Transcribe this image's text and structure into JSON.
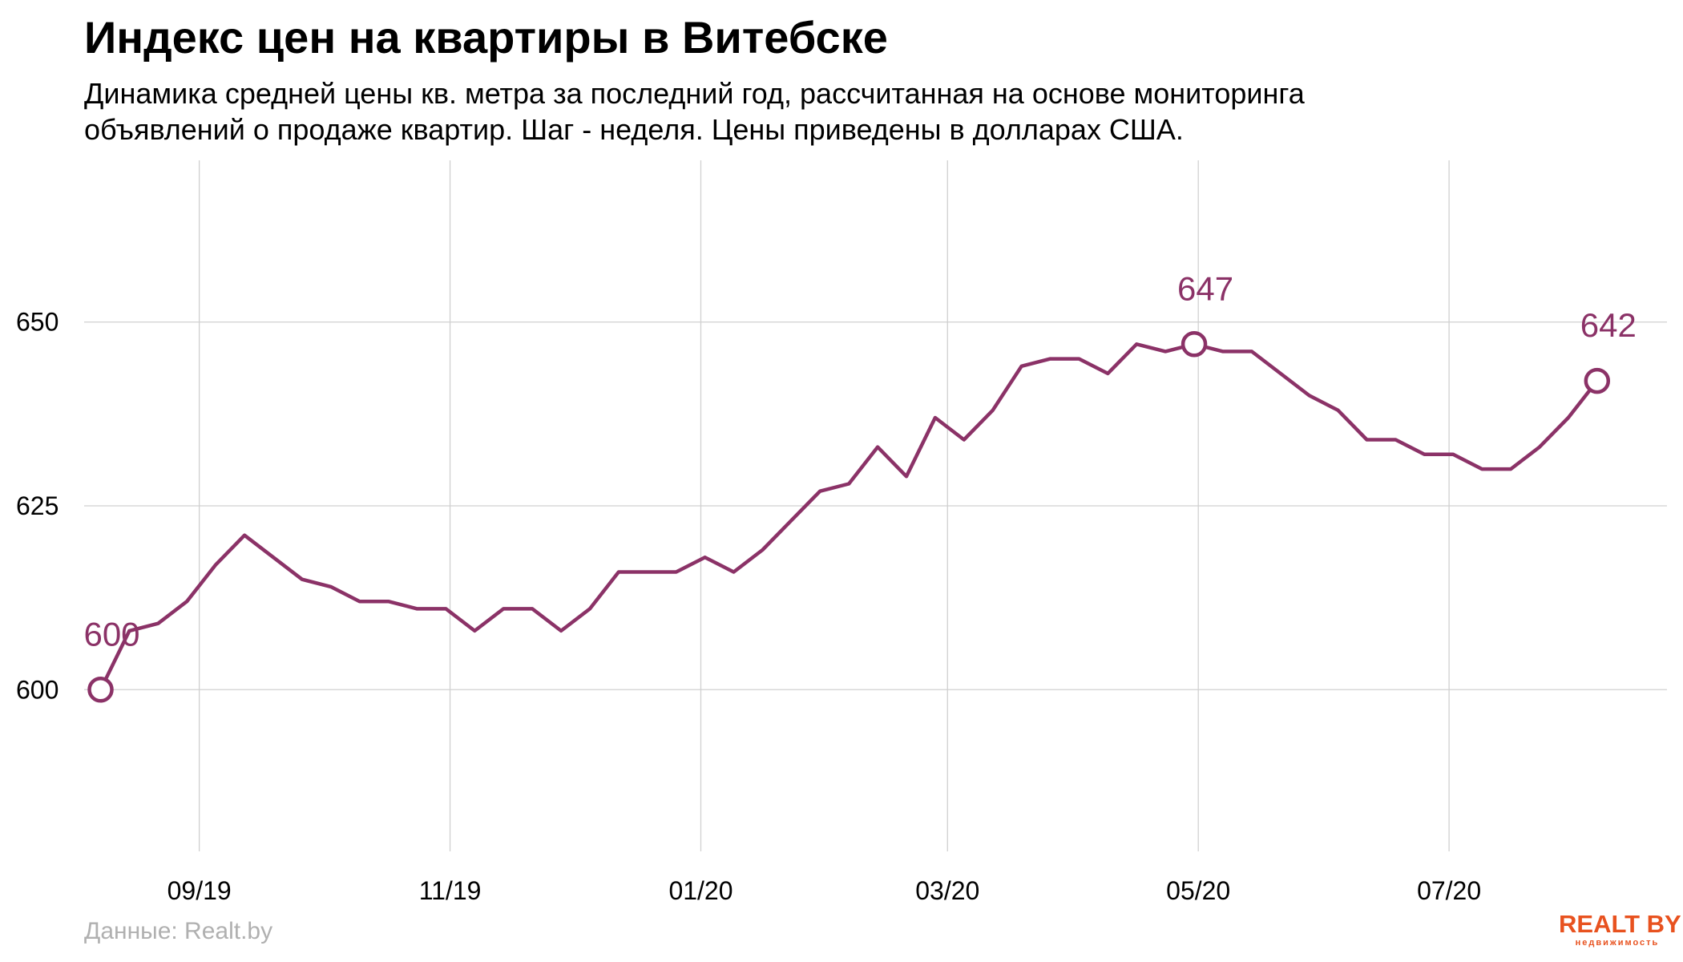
{
  "header": {
    "title": "Индекс цен на квартиры в Витебске",
    "subtitle_line1": "Динамика средней цены кв. метра за последний год, рассчитанная на основе мониторинга",
    "subtitle_line2": "объявлений о продаже квартир. Шаг - неделя. Цены приведены в долларах США."
  },
  "footer": {
    "source": "Данные: Realt.by",
    "logo_text": "REALT BY",
    "logo_subtext": "недвижимость"
  },
  "colors": {
    "line": "#8b3267",
    "grid": "#d0d0d0",
    "logo": "#e8521f"
  },
  "chart_data": {
    "type": "line",
    "title": "Индекс цен на квартиры в Витебске",
    "xlabel": "",
    "ylabel": "",
    "x_tick_labels": [
      "09/19",
      "11/19",
      "01/20",
      "03/20",
      "05/20",
      "07/20"
    ],
    "x_ticks": [
      "2019-09-01",
      "2019-11-01",
      "2020-01-01",
      "2020-03-01",
      "2020-05-01",
      "2020-07-01"
    ],
    "xlim": [
      "2019-08-04",
      "2020-08-23"
    ],
    "y_ticks": [
      600,
      625,
      650
    ],
    "ylim": [
      578,
      672
    ],
    "grid": true,
    "series": [
      {
        "x": [
          "2019-08-08",
          "2019-08-15",
          "2019-08-22",
          "2019-08-29",
          "2019-09-05",
          "2019-09-12",
          "2019-09-19",
          "2019-09-26",
          "2019-10-03",
          "2019-10-10",
          "2019-10-17",
          "2019-10-24",
          "2019-10-31",
          "2019-11-07",
          "2019-11-14",
          "2019-11-21",
          "2019-11-28",
          "2019-12-05",
          "2019-12-12",
          "2019-12-19",
          "2019-12-26",
          "2020-01-02",
          "2020-01-09",
          "2020-01-16",
          "2020-01-23",
          "2020-01-30",
          "2020-02-06",
          "2020-02-13",
          "2020-02-20",
          "2020-02-27",
          "2020-03-05",
          "2020-03-12",
          "2020-03-19",
          "2020-03-26",
          "2020-04-02",
          "2020-04-09",
          "2020-04-16",
          "2020-04-23",
          "2020-04-30",
          "2020-05-07",
          "2020-05-14",
          "2020-05-21",
          "2020-05-28",
          "2020-06-04",
          "2020-06-11",
          "2020-06-18",
          "2020-06-25",
          "2020-07-02",
          "2020-07-09",
          "2020-07-16",
          "2020-07-23",
          "2020-07-30",
          "2020-08-06"
        ],
        "values": [
          600,
          608,
          609,
          612,
          617,
          621,
          618,
          615,
          614,
          612,
          612,
          611,
          611,
          608,
          611,
          611,
          608,
          611,
          616,
          616,
          616,
          618,
          616,
          619,
          623,
          627,
          628,
          633,
          629,
          637,
          634,
          638,
          644,
          645,
          645,
          643,
          647,
          646,
          647,
          646,
          646,
          643,
          640,
          638,
          634,
          634,
          632,
          632,
          630,
          630,
          633,
          637,
          642
        ]
      }
    ],
    "annotations": [
      {
        "x": "2019-08-08",
        "value": 600,
        "label": "600"
      },
      {
        "x": "2020-04-30",
        "value": 647,
        "label": "647"
      },
      {
        "x": "2020-08-06",
        "value": 642,
        "label": "642"
      }
    ]
  }
}
